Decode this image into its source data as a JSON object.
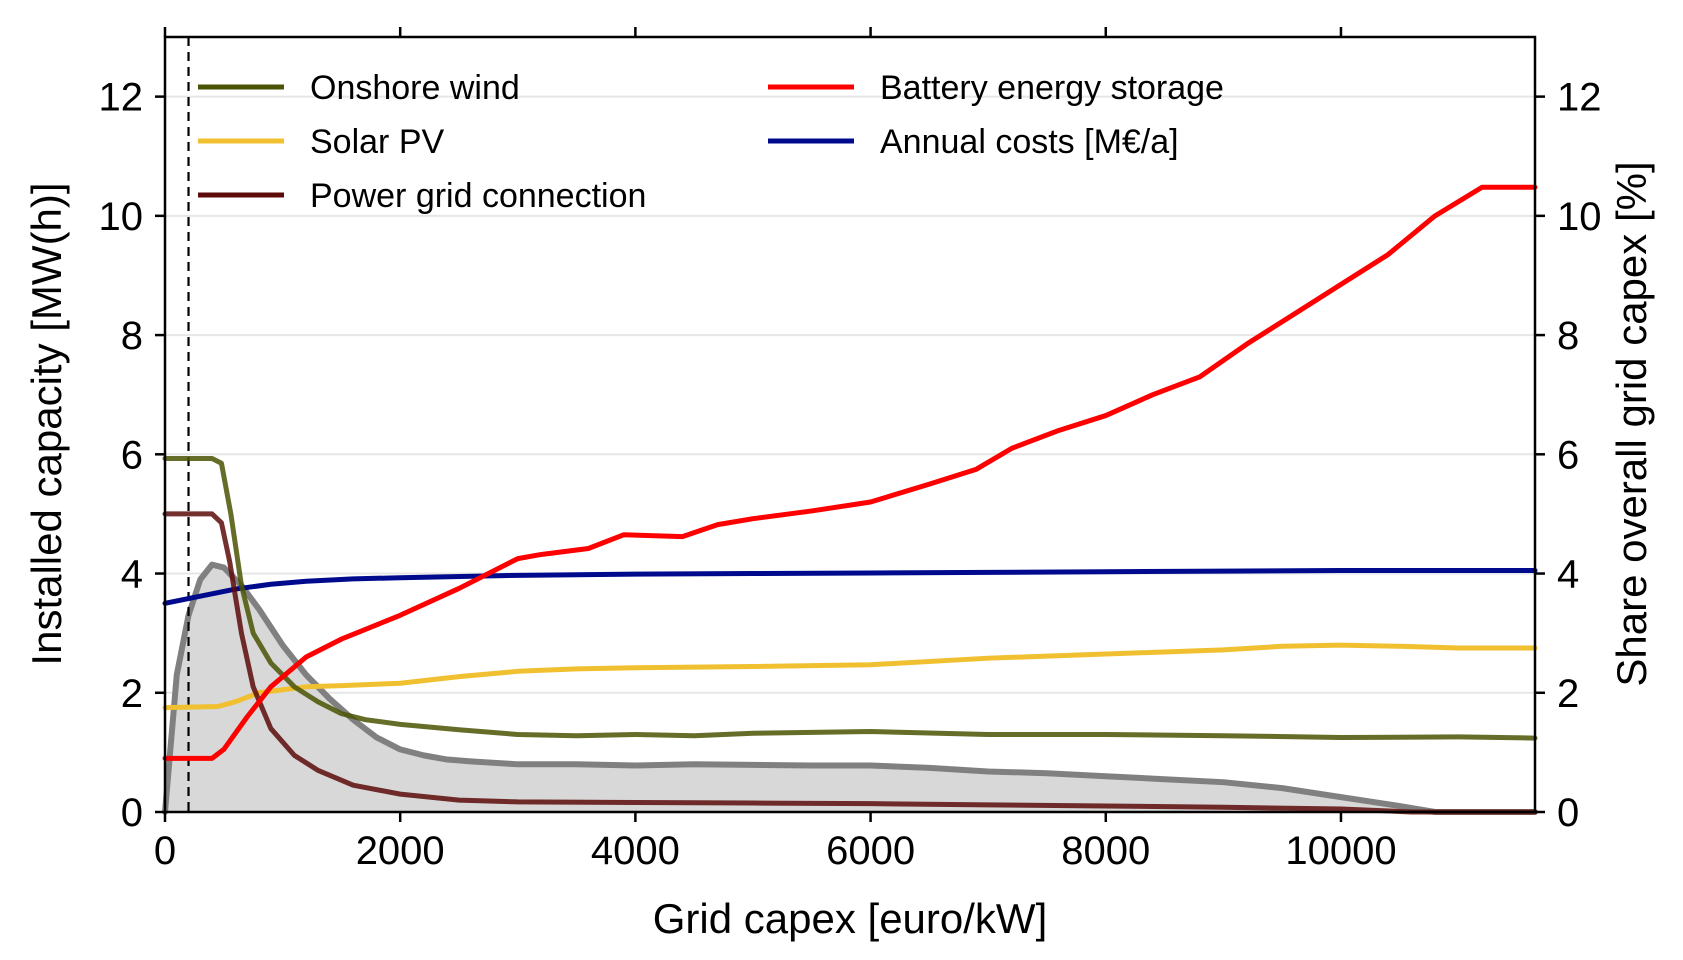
{
  "chart_data": {
    "type": "line",
    "xlabel": "Grid capex [euro/kW]",
    "ylabel_left": "Installed capacity [MW(h)]",
    "ylabel_right": "Share overall grid capex [%]",
    "xlim": [
      0,
      11650
    ],
    "ylim_left": [
      0,
      13
    ],
    "ylim_right": [
      0,
      13
    ],
    "x_ticks": [
      0,
      2000,
      4000,
      6000,
      8000,
      10000
    ],
    "y_ticks_left": [
      0,
      2,
      4,
      6,
      8,
      10,
      12
    ],
    "y_ticks_right": [
      0,
      2,
      4,
      6,
      8,
      10,
      12
    ],
    "grid": "horizontal",
    "legend_position": "top",
    "reference_line_x": 200,
    "colors": {
      "onshore_wind": "#4a5304",
      "solar_pv": "#f0c030",
      "power_grid": "#5c0a0a",
      "battery": "#ff0000",
      "annual_costs": "#000a8c",
      "share_fill": "#d8d8d8",
      "share_line": "#808080",
      "right_axis_label": "#a6a6a6"
    },
    "series": [
      {
        "name": "Onshore wind",
        "color": "#4a5304",
        "x": [
          0,
          400,
          480,
          560,
          650,
          750,
          900,
          1100,
          1300,
          1500,
          1700,
          2000,
          2500,
          3000,
          3500,
          4000,
          4500,
          5000,
          6000,
          7000,
          8000,
          9000,
          10000,
          11000,
          11650
        ],
        "y": [
          5.93,
          5.93,
          5.85,
          5.0,
          3.8,
          3.0,
          2.5,
          2.1,
          1.85,
          1.65,
          1.55,
          1.47,
          1.38,
          1.3,
          1.28,
          1.3,
          1.28,
          1.32,
          1.35,
          1.3,
          1.3,
          1.28,
          1.25,
          1.26,
          1.24
        ]
      },
      {
        "name": "Solar PV",
        "color": "#f0c030",
        "x": [
          0,
          450,
          600,
          800,
          1000,
          1200,
          1500,
          2000,
          2500,
          3000,
          3500,
          4000,
          5000,
          6000,
          7000,
          8000,
          9000,
          9500,
          10000,
          10500,
          11000,
          11650
        ],
        "y": [
          1.75,
          1.77,
          1.85,
          2.0,
          2.05,
          2.1,
          2.12,
          2.16,
          2.27,
          2.36,
          2.4,
          2.42,
          2.44,
          2.47,
          2.58,
          2.65,
          2.72,
          2.78,
          2.8,
          2.78,
          2.75,
          2.75
        ]
      },
      {
        "name": "Power grid connection",
        "color": "#5c0a0a",
        "x": [
          0,
          400,
          480,
          550,
          650,
          750,
          900,
          1100,
          1300,
          1600,
          2000,
          2500,
          3000,
          4000,
          5000,
          6000,
          7000,
          8000,
          9000,
          10000,
          10600,
          11650
        ],
        "y": [
          5.0,
          5.0,
          4.85,
          4.2,
          3.0,
          2.1,
          1.4,
          0.95,
          0.7,
          0.45,
          0.3,
          0.2,
          0.17,
          0.16,
          0.15,
          0.14,
          0.12,
          0.1,
          0.08,
          0.05,
          0.0,
          0.0
        ]
      },
      {
        "name": "Battery energy storage",
        "color": "#ff0000",
        "x": [
          0,
          400,
          500,
          700,
          900,
          1200,
          1500,
          2000,
          2500,
          3000,
          3200,
          3600,
          3900,
          4400,
          4700,
          5000,
          5500,
          6000,
          6500,
          6900,
          7200,
          7600,
          8000,
          8400,
          8800,
          9200,
          9600,
          10000,
          10400,
          10800,
          11200,
          11650
        ],
        "y": [
          0.9,
          0.9,
          1.05,
          1.6,
          2.1,
          2.6,
          2.9,
          3.3,
          3.75,
          4.25,
          4.32,
          4.42,
          4.65,
          4.62,
          4.82,
          4.92,
          5.05,
          5.2,
          5.5,
          5.75,
          6.1,
          6.4,
          6.65,
          7.0,
          7.3,
          7.85,
          8.35,
          8.85,
          9.35,
          10.0,
          10.48,
          10.48
        ]
      },
      {
        "name": "Annual costs [M€/a]",
        "color": "#000a8c",
        "x": [
          0,
          300,
          600,
          900,
          1200,
          1600,
          2000,
          3000,
          4000,
          5000,
          6000,
          7000,
          8000,
          9000,
          10000,
          11000,
          11650
        ],
        "y": [
          3.5,
          3.62,
          3.74,
          3.82,
          3.87,
          3.91,
          3.93,
          3.97,
          3.99,
          4.0,
          4.01,
          4.02,
          4.03,
          4.04,
          4.05,
          4.05,
          4.05
        ]
      }
    ],
    "share_series": {
      "color": "#808080",
      "fill": "#d8d8d8",
      "x": [
        0,
        100,
        200,
        300,
        400,
        500,
        650,
        800,
        1000,
        1200,
        1400,
        1600,
        1800,
        2000,
        2200,
        2400,
        2600,
        3000,
        3500,
        4000,
        4500,
        5000,
        5500,
        6000,
        6500,
        7000,
        7500,
        8000,
        8500,
        9000,
        9500,
        10000,
        10500,
        10800,
        11000,
        11650
      ],
      "y": [
        0.0,
        2.3,
        3.3,
        3.9,
        4.15,
        4.1,
        3.8,
        3.4,
        2.8,
        2.3,
        1.9,
        1.55,
        1.25,
        1.05,
        0.95,
        0.88,
        0.85,
        0.8,
        0.8,
        0.78,
        0.8,
        0.79,
        0.78,
        0.78,
        0.74,
        0.68,
        0.65,
        0.6,
        0.55,
        0.5,
        0.4,
        0.25,
        0.1,
        0.0,
        0.0,
        0.0
      ]
    }
  }
}
